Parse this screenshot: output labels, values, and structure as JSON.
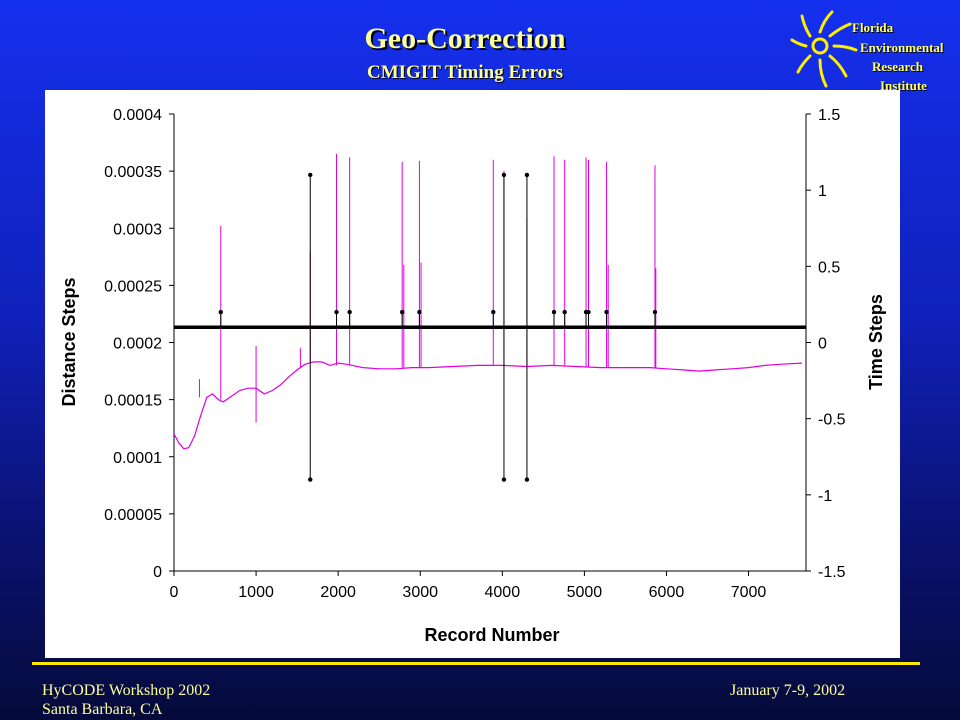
{
  "header": {
    "title": "Geo-Correction",
    "subtitle": "CMIGIT Timing Errors"
  },
  "logo": {
    "icon": "sun-logo-icon",
    "lines": [
      "Florida",
      "Environmental",
      "Research",
      "Institute"
    ]
  },
  "footer": {
    "workshop": "HyCODE Workshop 2002",
    "location": "Santa Barbara, CA",
    "date": "January 7-9, 2002"
  },
  "colors": {
    "distance_series": "#e000e0",
    "time_series": "#000000",
    "accent_text": "#ffff99",
    "rule": "#ffe600"
  },
  "chart_data": {
    "type": "line",
    "xlabel": "Record Number",
    "ylabel": "Distance Steps",
    "y2label": "Time Steps",
    "xlim": [
      0,
      7700
    ],
    "ylim": [
      0,
      0.0004
    ],
    "y2lim": [
      -1.5,
      1.5
    ],
    "x_ticks": [
      "0",
      "1000",
      "2000",
      "3000",
      "4000",
      "5000",
      "6000",
      "7000"
    ],
    "x_tick_values": [
      0,
      1000,
      2000,
      3000,
      4000,
      5000,
      6000,
      7000
    ],
    "y_ticks": [
      "0",
      "0.00005",
      "0.0001",
      "0.00015",
      "0.0002",
      "0.00025",
      "0.0003",
      "0.00035",
      "0.0004"
    ],
    "y_tick_values": [
      0,
      5e-05,
      0.0001,
      0.00015,
      0.0002,
      0.00025,
      0.0003,
      0.00035,
      0.0004
    ],
    "y2_ticks": [
      "-1.5",
      "-1",
      "-0.5",
      "0",
      "0.5",
      "1",
      "1.5"
    ],
    "y2_tick_values": [
      -1.5,
      -1,
      -0.5,
      0,
      0.5,
      1,
      1.5
    ],
    "grid": false,
    "series": [
      {
        "axis": "left",
        "baseline": [
          [
            0,
            0.00012
          ],
          [
            60,
            0.000112
          ],
          [
            120,
            0.000107
          ],
          [
            180,
            0.000108
          ],
          [
            250,
            0.000118
          ],
          [
            320,
            0.000135
          ],
          [
            400,
            0.000152
          ],
          [
            470,
            0.000155
          ],
          [
            540,
            0.00015
          ],
          [
            600,
            0.000148
          ],
          [
            700,
            0.000153
          ],
          [
            800,
            0.000158
          ],
          [
            900,
            0.00016
          ],
          [
            1000,
            0.00016
          ],
          [
            1100,
            0.000155
          ],
          [
            1200,
            0.000158
          ],
          [
            1300,
            0.000163
          ],
          [
            1400,
            0.00017
          ],
          [
            1500,
            0.000176
          ],
          [
            1600,
            0.000181
          ],
          [
            1700,
            0.000183
          ],
          [
            1800,
            0.000183
          ],
          [
            1900,
            0.00018
          ],
          [
            2000,
            0.000182
          ],
          [
            2100,
            0.000181
          ],
          [
            2300,
            0.000178
          ],
          [
            2500,
            0.000177
          ],
          [
            2700,
            0.000177
          ],
          [
            2900,
            0.000178
          ],
          [
            3100,
            0.000178
          ],
          [
            3400,
            0.000179
          ],
          [
            3700,
            0.00018
          ],
          [
            4000,
            0.00018
          ],
          [
            4300,
            0.000179
          ],
          [
            4600,
            0.00018
          ],
          [
            4900,
            0.000179
          ],
          [
            5200,
            0.000178
          ],
          [
            5500,
            0.000178
          ],
          [
            5800,
            0.000178
          ],
          [
            6000,
            0.000177
          ],
          [
            6200,
            0.000176
          ],
          [
            6400,
            0.000175
          ],
          [
            6600,
            0.000176
          ],
          [
            6800,
            0.000177
          ],
          [
            7000,
            0.000178
          ],
          [
            7200,
            0.00018
          ],
          [
            7400,
            0.000181
          ],
          [
            7650,
            0.000182
          ]
        ],
        "spikes": [
          {
            "x": 310,
            "from": 0.000152,
            "to": 0.000168
          },
          {
            "x": 570,
            "from": 0.00015,
            "to": 0.000302
          },
          {
            "x": 1000,
            "from": 0.00013,
            "to": 0.000197
          },
          {
            "x": 1540,
            "from": 0.000178,
            "to": 0.000195
          },
          {
            "x": 1660,
            "from": 0.000182,
            "to": 0.00028
          },
          {
            "x": 1980,
            "from": 0.00018,
            "to": 0.000365
          },
          {
            "x": 2140,
            "from": 0.00018,
            "to": 0.000362
          },
          {
            "x": 2780,
            "from": 0.000178,
            "to": 0.000358
          },
          {
            "x": 2800,
            "from": 0.000178,
            "to": 0.000268
          },
          {
            "x": 2990,
            "from": 0.000178,
            "to": 0.000359
          },
          {
            "x": 3010,
            "from": 0.000178,
            "to": 0.00027
          },
          {
            "x": 3890,
            "from": 0.00018,
            "to": 0.00036
          },
          {
            "x": 4020,
            "from": 0.00018,
            "to": 0.00035
          },
          {
            "x": 4300,
            "from": 0.00018,
            "to": 0.000309
          },
          {
            "x": 4630,
            "from": 0.00018,
            "to": 0.000363
          },
          {
            "x": 4760,
            "from": 0.00018,
            "to": 0.00036
          },
          {
            "x": 5020,
            "from": 0.000179,
            "to": 0.000362
          },
          {
            "x": 5050,
            "from": 0.000179,
            "to": 0.00036
          },
          {
            "x": 5270,
            "from": 0.000178,
            "to": 0.000358
          },
          {
            "x": 5290,
            "from": 0.000178,
            "to": 0.000268
          },
          {
            "x": 5860,
            "from": 0.000178,
            "to": 0.000355
          },
          {
            "x": 5870,
            "from": 0.000178,
            "to": 0.000265
          }
        ]
      },
      {
        "axis": "right",
        "baseline": 0.1,
        "points": [
          {
            "x": 570,
            "y": 0.2
          },
          {
            "x": 1660,
            "y": 1.1,
            "y_low": -0.9
          },
          {
            "x": 1980,
            "y": 0.2
          },
          {
            "x": 2140,
            "y": 0.2
          },
          {
            "x": 2780,
            "y": 0.2
          },
          {
            "x": 2990,
            "y": 0.2
          },
          {
            "x": 3890,
            "y": 0.2
          },
          {
            "x": 4020,
            "y": 1.1,
            "y_low": -0.9
          },
          {
            "x": 4300,
            "y": 1.1,
            "y_low": -0.9
          },
          {
            "x": 4630,
            "y": 0.2
          },
          {
            "x": 4760,
            "y": 0.2
          },
          {
            "x": 5020,
            "y": 0.2
          },
          {
            "x": 5050,
            "y": 0.2
          },
          {
            "x": 5270,
            "y": 0.2
          },
          {
            "x": 5860,
            "y": 0.2
          }
        ]
      }
    ]
  }
}
